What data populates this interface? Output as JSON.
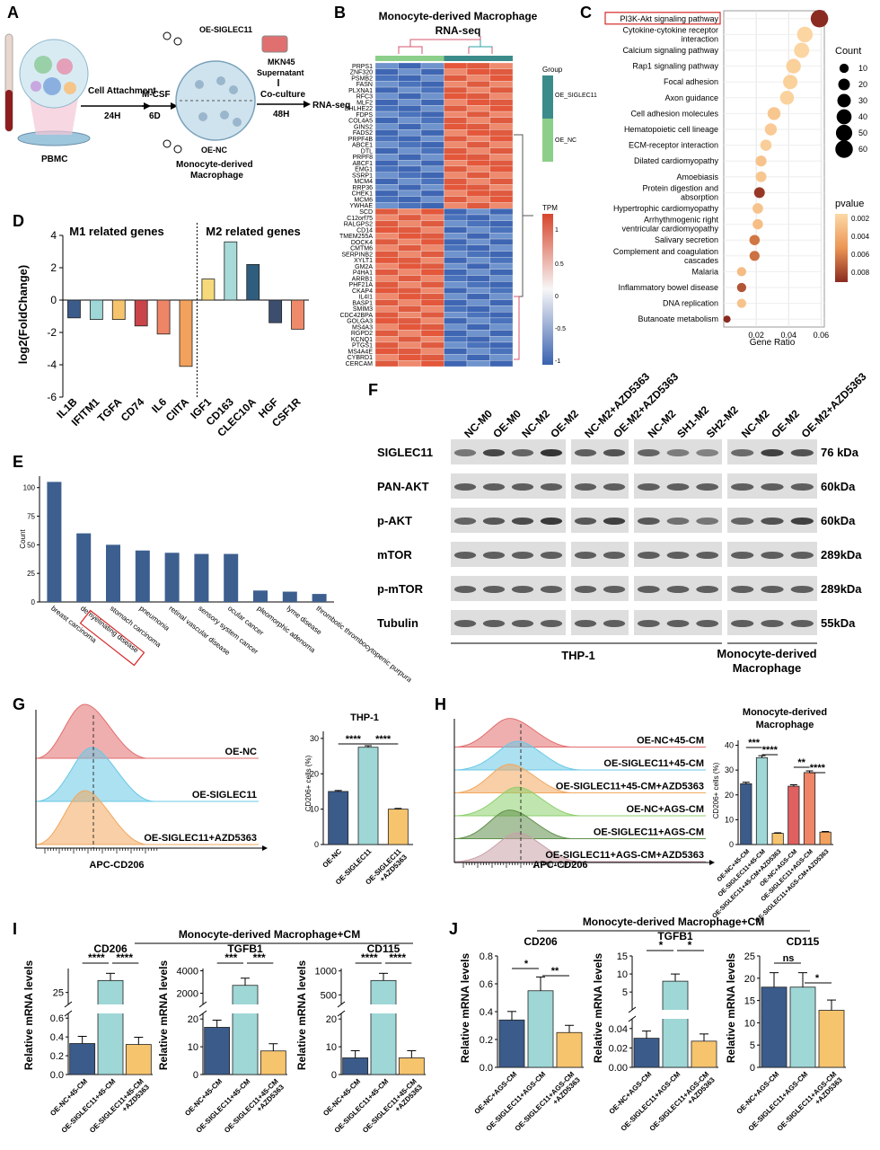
{
  "panel_labels": [
    "A",
    "B",
    "C",
    "D",
    "E",
    "F",
    "G",
    "H",
    "I",
    "J"
  ],
  "A": {
    "pbmc": "PBMC",
    "cell_attachment": "Cell Attachment",
    "h24": "24H",
    "mcsf": "M-CSF",
    "d6": "6D",
    "oe_siglec11": "OE-SIGLEC11",
    "oe_nc": "OE-NC",
    "mdm": "Monocyte-derived",
    "mdm2": "Macrophage",
    "mkn45": "MKN45",
    "supernatant": "Supernatant",
    "coculture": "Co-culture",
    "h48": "48H",
    "rnaseq": "RNA-seq"
  },
  "B": {
    "title1": "Monocyte-derived Macrophage",
    "title2": "RNA-seq",
    "group_title": "Group",
    "group_levels": [
      "OE_SIGLEC11",
      "OE_NC"
    ],
    "tpm_title": "TPM",
    "tpm_ticks": [
      "1",
      "0.5",
      "0",
      "-0.5",
      "-1"
    ],
    "genes": [
      "PRPS1",
      "ZNF320",
      "PSMB2",
      "FASN",
      "PLXNA1",
      "RFC3",
      "MLF2",
      "BHLHE22",
      "FDPS",
      "COL4A5",
      "GINS2",
      "FADS2",
      "PRPF4B",
      "ABCE1",
      "DTL",
      "PRPF8",
      "ABCF1",
      "EMG1",
      "SSRP1",
      "MCM4",
      "RRP36",
      "CHEK1",
      "MCM6",
      "YWHAE",
      "SCD",
      "C12orf75",
      "RALGPS2",
      "CD14",
      "TMEM255A",
      "DOCK4",
      "CMTM6",
      "SERPINB2",
      "XYLT1",
      "GM2A",
      "P4HA1",
      "ARRB1",
      "PHF21A",
      "CKAP4",
      "IL4I1",
      "BASP1",
      "SMIM3",
      "CDC42BPA",
      "GOLGA3",
      "MS4A3",
      "RGPD2",
      "KCNQ1",
      "PTGS1",
      "MS4A4E",
      "CYBRD1",
      "CERCAM"
    ],
    "up_count": 24
  },
  "C": {
    "xlabel": "Gene Ratio",
    "count_title": "Count",
    "count_levels": [
      "10",
      "20",
      "30",
      "40",
      "50",
      "60"
    ],
    "pvalue_title": "pvalue",
    "pvalue_ticks": [
      "0.002",
      "0.004",
      "0.006",
      "0.008"
    ],
    "xticks": [
      "0.02",
      "0.04",
      "0.06"
    ],
    "pathways": [
      {
        "name": "PI3K-Akt signaling pathway",
        "ratio": 0.059,
        "count": 60,
        "p": 0.0085
      },
      {
        "name": "Cytokine-cytokine receptor\ninteraction",
        "ratio": 0.05,
        "count": 45,
        "p": 0.0012
      },
      {
        "name": "Calcium signaling pathway",
        "ratio": 0.048,
        "count": 42,
        "p": 0.0012
      },
      {
        "name": "Rap1 signaling pathway",
        "ratio": 0.043,
        "count": 38,
        "p": 0.0015
      },
      {
        "name": "Focal adhesion",
        "ratio": 0.041,
        "count": 36,
        "p": 0.0015
      },
      {
        "name": "Axon guidance",
        "ratio": 0.039,
        "count": 33,
        "p": 0.0014
      },
      {
        "name": "Cell adhesion molecules",
        "ratio": 0.031,
        "count": 27,
        "p": 0.002
      },
      {
        "name": "Hematopoietic cell lineage",
        "ratio": 0.029,
        "count": 22,
        "p": 0.0018
      },
      {
        "name": "ECM-receptor interaction",
        "ratio": 0.026,
        "count": 18,
        "p": 0.0016
      },
      {
        "name": "Dilated cardiomyopathy",
        "ratio": 0.023,
        "count": 17,
        "p": 0.0022
      },
      {
        "name": "Amoebiasis",
        "ratio": 0.023,
        "count": 16,
        "p": 0.002
      },
      {
        "name": "Protein digestion and\nabsorption",
        "ratio": 0.022,
        "count": 16,
        "p": 0.008
      },
      {
        "name": "Hypertrophic cardiomyopathy",
        "ratio": 0.021,
        "count": 15,
        "p": 0.0022
      },
      {
        "name": "Arrhythmogenic right\nventricular cardiomyopathy",
        "ratio": 0.021,
        "count": 14,
        "p": 0.0025
      },
      {
        "name": "Salivary secretion",
        "ratio": 0.019,
        "count": 14,
        "p": 0.0058
      },
      {
        "name": "Complement and coagulation\ncascades",
        "ratio": 0.019,
        "count": 13,
        "p": 0.006
      },
      {
        "name": "Malaria",
        "ratio": 0.011,
        "count": 10,
        "p": 0.0026
      },
      {
        "name": "Inflammatory bowel disease",
        "ratio": 0.011,
        "count": 10,
        "p": 0.007
      },
      {
        "name": "DNA replication",
        "ratio": 0.011,
        "count": 10,
        "p": 0.0022
      },
      {
        "name": "Butanoate metabolism",
        "ratio": 0.002,
        "count": 4,
        "p": 0.0085
      }
    ]
  },
  "D": {
    "ylabel": "log2(FoldChange)",
    "m1_title": "M1 related genes",
    "m2_title": "M2 related genes",
    "yticks": [
      "4",
      "2",
      "0",
      "-2",
      "-4",
      "-6"
    ],
    "genes": [
      {
        "name": "IL1B",
        "value": -1.1,
        "color": "#3b5b8a"
      },
      {
        "name": "IFITM1",
        "value": -1.2,
        "color": "#9fd6d6"
      },
      {
        "name": "TGFA",
        "value": -1.2,
        "color": "#f6c46d"
      },
      {
        "name": "CD74",
        "value": -1.6,
        "color": "#c9454a"
      },
      {
        "name": "IL6",
        "value": -2.1,
        "color": "#ee8566"
      },
      {
        "name": "CIITA",
        "value": -4.1,
        "color": "#f2a25c"
      },
      {
        "name": "IGF1",
        "value": 1.3,
        "color": "#f6d97a"
      },
      {
        "name": "CD163",
        "value": 3.6,
        "color": "#a8dad8"
      },
      {
        "name": "CLEC10A",
        "value": 2.2,
        "color": "#2f5d7e"
      },
      {
        "name": "HGF",
        "value": -1.4,
        "color": "#3b4e6e"
      },
      {
        "name": "CSF1R",
        "value": -1.8,
        "color": "#ee8a6a"
      }
    ]
  },
  "E": {
    "ylabel": "Count",
    "yticks": [
      "100",
      "75",
      "50",
      "25",
      "0"
    ],
    "bars": [
      {
        "name": "breast carcinoma",
        "value": 105
      },
      {
        "name": "demyelinating disease",
        "value": 60
      },
      {
        "name": "stomach carcinoma",
        "value": 50
      },
      {
        "name": "pneumonia",
        "value": 45
      },
      {
        "name": "retinal vascular disease",
        "value": 43
      },
      {
        "name": "sensory system cancer",
        "value": 42
      },
      {
        "name": "ocular cancer",
        "value": 42
      },
      {
        "name": "pleomorphic adenoma",
        "value": 10
      },
      {
        "name": "lyme disease",
        "value": 9
      },
      {
        "name": "thrombotic thrombocytopenic purpura",
        "value": 7
      }
    ]
  },
  "F": {
    "headers": [
      "NC-M0",
      "OE-M0",
      "NC-M2",
      "OE-M2",
      "NC-M2+AZD5363",
      "OE-M2+AZD5363",
      "NC-M2",
      "SH1-M2",
      "SH2-M2",
      "NC-M2",
      "OE-M2",
      "OE-M2+AZD5363"
    ],
    "rows": [
      {
        "name": "SIGLEC11",
        "kda": "76 kDa"
      },
      {
        "name": "PAN-AKT",
        "kda": "60kDa"
      },
      {
        "name": "p-AKT",
        "kda": "60kDa"
      },
      {
        "name": "mTOR",
        "kda": "289kDa"
      },
      {
        "name": "p-mTOR",
        "kda": "289kDa"
      },
      {
        "name": "Tubulin",
        "kda": "55kDa"
      }
    ],
    "thp1": "THP-1",
    "mdm1": "Monocyte-derived",
    "mdm2": "Macrophage"
  },
  "G": {
    "hist_labels": [
      "OE-NC",
      "OE-SIGLEC11",
      "OE-SIGLEC11+AZD5363"
    ],
    "xlabel": "APC-CD206",
    "bar_title": "THP-1",
    "ylabel": "CD206+ cells (%)",
    "yticks": [
      "30",
      "20",
      "10",
      "0"
    ],
    "bars": [
      {
        "name": "OE-NC",
        "value": 15,
        "color": "#3b5b8a"
      },
      {
        "name": "OE-SIGLEC11",
        "value": 27.5,
        "color": "#9fd6d6"
      },
      {
        "name": "OE-SIGLEC11\n+AZD5363",
        "value": 10,
        "color": "#f6c46d"
      }
    ],
    "sig": [
      "****",
      "****"
    ]
  },
  "H": {
    "hist_labels": [
      "OE-NC+45-CM",
      "OE-SIGLEC11+45-CM",
      "OE-SIGLEC11+45-CM+AZD5363",
      "OE-NC+AGS-CM",
      "OE-SIGLEC11+AGS-CM",
      "OE-SIGLEC11+AGS-CM+AZD5363"
    ],
    "xlabel": "APC-CD206",
    "bar_title1": "Monocyte-derived",
    "bar_title2": "Macrophage",
    "ylabel": "CD206+ cells (%)",
    "yticks": [
      "40",
      "30",
      "20",
      "10",
      "0"
    ],
    "bars": [
      {
        "name": "OE-NC+45-CM",
        "value": 24.5,
        "color": "#3b5b8a"
      },
      {
        "name": "OE-SIGLEC11+45-CM",
        "value": 35,
        "color": "#9fd6d6"
      },
      {
        "name": "OE-SIGLEC11+45-CM+AZD5363",
        "value": 4.5,
        "color": "#f6c46d"
      },
      {
        "name": "OE-NC+AGS-CM",
        "value": 23.5,
        "color": "#e06060"
      },
      {
        "name": "OE-SIGLEC11+AGS-CM",
        "value": 29,
        "color": "#ee8566"
      },
      {
        "name": "OE-SIGLEC11+AGS-CM+AZD5363",
        "value": 5,
        "color": "#f2a25c"
      }
    ],
    "sig": [
      "***",
      "****",
      "**",
      "****"
    ]
  },
  "I": {
    "title": "Monocyte-derived Macrophage+CM",
    "ylabel": "Relative mRNA levels",
    "xlabels": [
      "OE-NC+45-CM",
      "OE-SIGLEC11+45-CM",
      "OE-SIGLEC11+45-CM\n+AZD5363"
    ],
    "charts": [
      {
        "gene": "CD206",
        "values": [
          0.33,
          30,
          0.32
        ],
        "top_ticks": [
          "25"
        ],
        "bot_ticks": [
          "0.6",
          "0.4",
          "0.2",
          "0.0"
        ],
        "sig": [
          "****",
          "****"
        ]
      },
      {
        "gene": "TGFB1",
        "values": [
          17,
          2700,
          8.5
        ],
        "top_ticks": [
          "4000",
          "2000"
        ],
        "bot_ticks": [
          "20",
          "10",
          "0"
        ],
        "sig": [
          "***",
          "***"
        ]
      },
      {
        "gene": "CD115",
        "values": [
          6,
          800,
          6
        ],
        "top_ticks": [
          "1000",
          "500"
        ],
        "bot_ticks": [
          "20",
          "10",
          "0"
        ],
        "sig": [
          "****",
          "****"
        ]
      }
    ]
  },
  "J": {
    "title": "Monocyte-derived Macrophage+CM",
    "ylabel": "Relative mRNA levels",
    "xlabels": [
      "OE-NC+AGS-CM",
      "OE-SIGLEC11+AGS-CM",
      "OE-SIGLEC11+AGS-CM\n+AZD5363"
    ],
    "charts": [
      {
        "gene": "CD206",
        "values": [
          0.34,
          0.55,
          0.25
        ],
        "ticks": [
          "0.8",
          "0.6",
          "0.4",
          "0.2",
          "0.0"
        ],
        "sig": [
          "*",
          "**"
        ]
      },
      {
        "gene": "TGFB1",
        "values": [
          0.03,
          8,
          0.027
        ],
        "top_ticks": [
          "15",
          "10",
          "5"
        ],
        "bot_ticks": [
          "0.04",
          "0.02",
          "0.00"
        ],
        "sig": [
          "*",
          "*"
        ]
      },
      {
        "gene": "CD115",
        "values": [
          18,
          18,
          12.8
        ],
        "ticks": [
          "25",
          "20",
          "15",
          "10",
          "5",
          "0"
        ],
        "sig": [
          "ns",
          "*"
        ]
      }
    ]
  }
}
